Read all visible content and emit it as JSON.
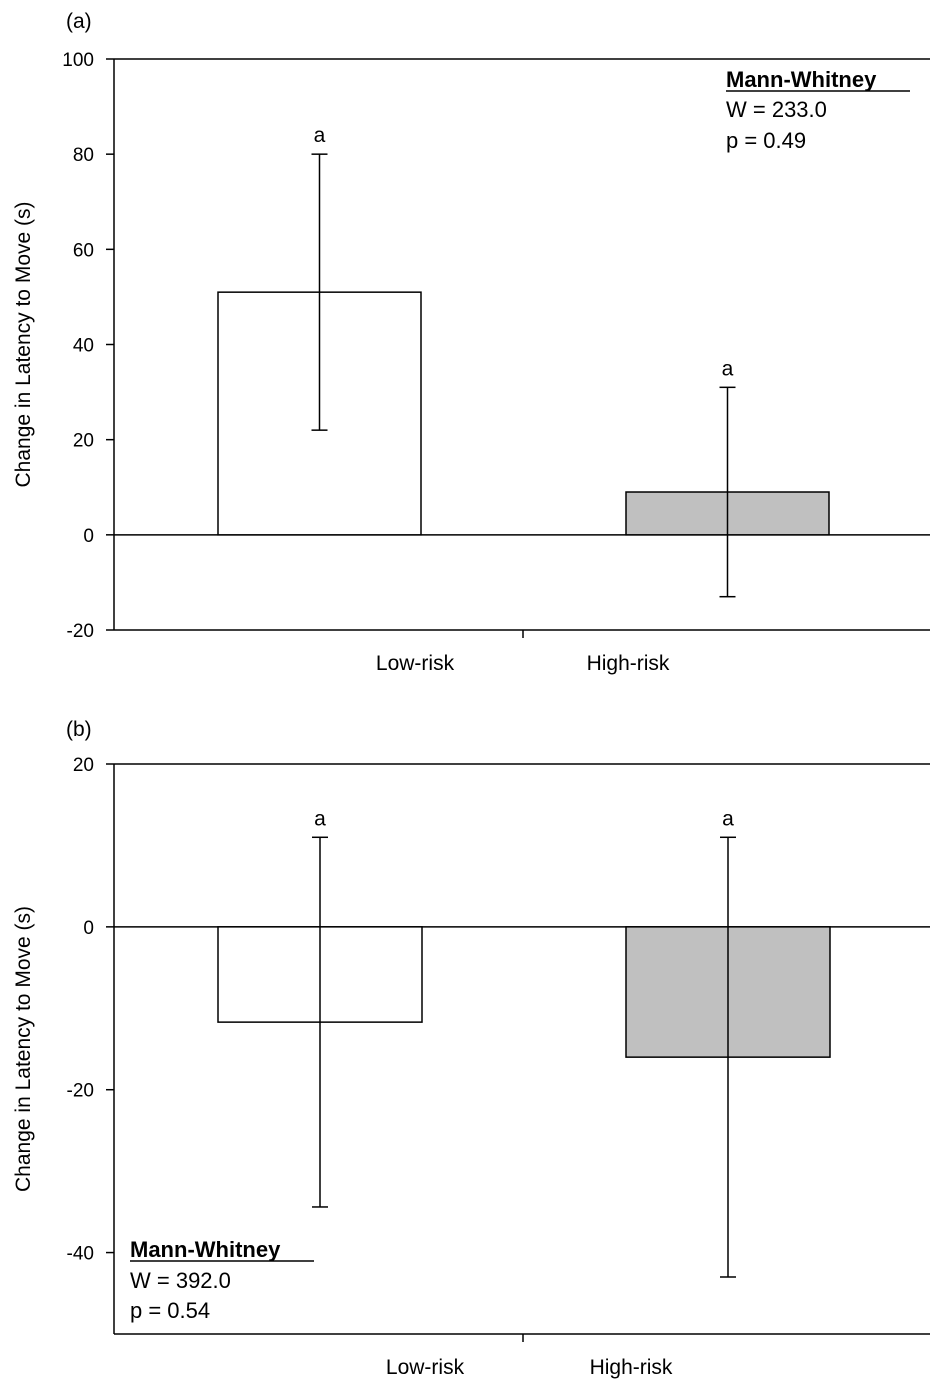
{
  "chart_data": [
    {
      "panel_label": "(a)",
      "type": "bar",
      "categories": [
        "Low-risk",
        "High-risk"
      ],
      "values": [
        51,
        9
      ],
      "error": [
        29,
        22
      ],
      "bar_colors": [
        "#ffffff",
        "#c0c0c0"
      ],
      "significance_letters": [
        "a",
        "a"
      ],
      "ylabel": "Change in Latency to Move (s)",
      "xlabel": "",
      "ylim": [
        -20,
        100
      ],
      "yticks": [
        -20,
        0,
        20,
        40,
        60,
        80,
        100
      ],
      "annotation": {
        "title": "Mann-Whitney",
        "lines": [
          "W = 233.0",
          "p = 0.49"
        ],
        "position": "top-right"
      }
    },
    {
      "panel_label": "(b)",
      "type": "bar",
      "categories": [
        "Low-risk",
        "High-risk"
      ],
      "values": [
        -11.7,
        -16
      ],
      "error": [
        22.7,
        27
      ],
      "bar_colors": [
        "#ffffff",
        "#c0c0c0"
      ],
      "significance_letters": [
        "a",
        "a"
      ],
      "ylabel": "Change in Latency to Move (s)",
      "xlabel": "",
      "ylim": [
        -50,
        20
      ],
      "yticks": [
        -40,
        -20,
        0,
        20
      ],
      "annotation": {
        "title": "Mann-Whitney",
        "lines": [
          "W = 392.0",
          "p = 0.54"
        ],
        "position": "bottom-left"
      }
    }
  ]
}
